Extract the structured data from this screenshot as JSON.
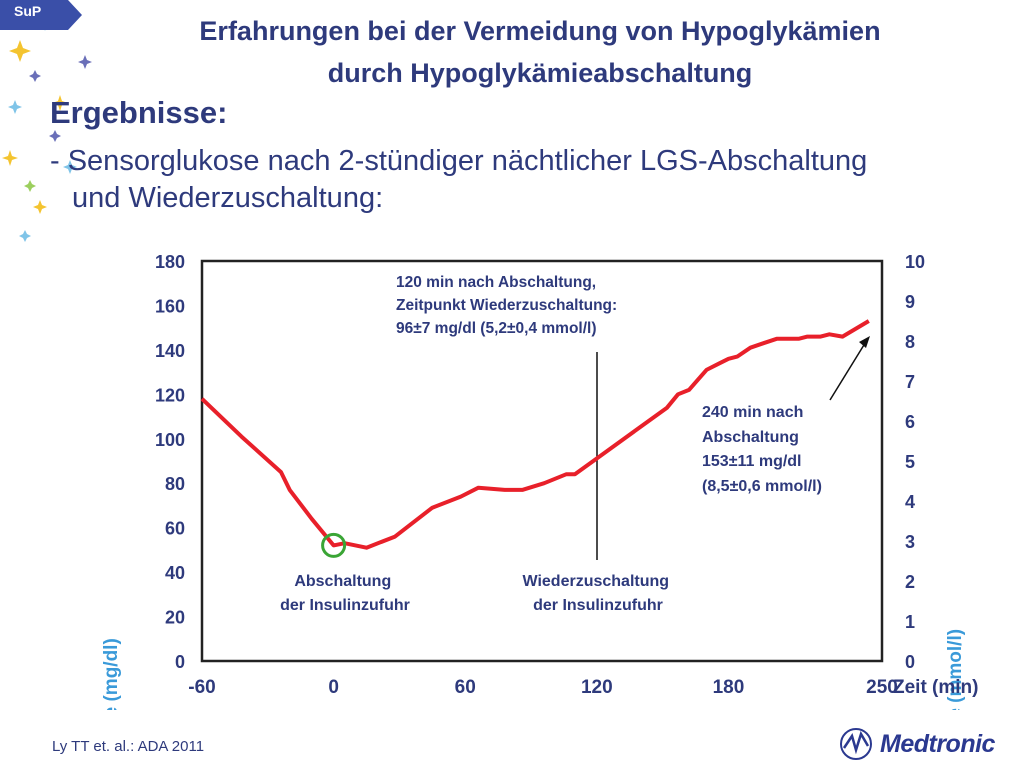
{
  "badge": "SuP",
  "title_line1": "Erfahrungen bei der Vermeidung von Hypoglykämien",
  "title_line2": "durch Hypoglykämieabschaltung",
  "section_heading": "Ergebnisse:",
  "bullet_text": "- Sensorglukose nach 2-stündiger nächtlicher LGS-Abschaltung und Wiederzuschaltung:",
  "footnote": "Ly TT et. al.:  ADA 2011",
  "logo_text": "Medtronic",
  "colors": {
    "title": "#2e3a7c",
    "curve": "#e8202a",
    "marker": "#3aa535"
  },
  "chart_data": {
    "type": "line",
    "title": "",
    "xlabel": "Zeit (min)",
    "ylabel": "Glukose (mg/dl)",
    "y2label": "Glukose (mmol/l)",
    "xlim": [
      -60,
      250
    ],
    "ylim": [
      0,
      180
    ],
    "y2lim": [
      0,
      10
    ],
    "x_ticks": [
      "-60",
      "0",
      "60",
      "120",
      "180",
      "250"
    ],
    "y_ticks": [
      "0",
      "20",
      "40",
      "60",
      "80",
      "100",
      "120",
      "140",
      "160",
      "180"
    ],
    "y2_ticks": [
      "0",
      "1",
      "2",
      "3",
      "4",
      "5",
      "6",
      "7",
      "8",
      "9",
      "10"
    ],
    "grid": false,
    "series": [
      {
        "x": [
          -60,
          -42,
          -24,
          -20,
          -10,
          0,
          5,
          15,
          28,
          45,
          58,
          66,
          78,
          86,
          96,
          106,
          110,
          124,
          138,
          152,
          157,
          162,
          170,
          176,
          180,
          184,
          190,
          196,
          202,
          208,
          212,
          216,
          222,
          226,
          232,
          244
        ],
        "y": [
          118,
          101,
          85,
          77,
          64,
          52,
          53,
          51,
          56,
          69,
          74,
          78,
          77,
          77,
          80,
          84,
          84,
          94,
          104,
          114,
          120,
          122,
          131,
          134,
          136,
          137,
          141,
          143,
          145,
          145,
          145,
          146,
          146,
          147,
          146,
          153
        ]
      }
    ],
    "annotations": [
      {
        "text": "120 min nach Abschaltung, Zeitpunkt Wiederzuschaltung: 96±7 mg/dl (5,2±0,4 mmol/l)",
        "lines": [
          "120 min nach Abschaltung,",
          "Zeitpunkt Wiederzuschaltung:",
          "96±7 mg/dl (5,2±0,4 mmol/l)"
        ]
      },
      {
        "text": "240 min nach Abschaltung 153±11 mg/dl (8,5±0,6 mmol/l)",
        "lines": [
          "240 min nach",
          "Abschaltung",
          "153±11 mg/dl",
          "(8,5±0,6 mmol/l)"
        ]
      },
      {
        "text": "Abschaltung der Insulinzufuhr",
        "lines": [
          "Abschaltung",
          "der Insulinzufuhr"
        ]
      },
      {
        "text": "Wiederzuschaltung der Insulinzufuhr",
        "lines": [
          "Wiederzuschaltung",
          "der Insulinzufuhr"
        ]
      }
    ]
  }
}
